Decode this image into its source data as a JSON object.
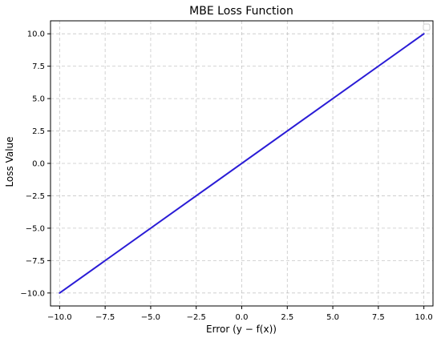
{
  "chart_data": {
    "type": "line",
    "title": "MBE Loss Function",
    "xlabel": "Error (y − f(x))",
    "ylabel": "Loss Value",
    "xlim": [
      -10.5,
      10.5
    ],
    "ylim": [
      -11.0,
      11.0
    ],
    "xticks": [
      -10.0,
      -7.5,
      -5.0,
      -2.5,
      0.0,
      2.5,
      5.0,
      7.5,
      10.0
    ],
    "yticks": [
      -10.0,
      -7.5,
      -5.0,
      -2.5,
      0.0,
      2.5,
      5.0,
      7.5,
      10.0
    ],
    "xtick_labels": [
      "−10.0",
      "−7.5",
      "−5.0",
      "−2.5",
      "0.0",
      "2.5",
      "5.0",
      "7.5",
      "10.0"
    ],
    "ytick_labels": [
      "−10.0",
      "−7.5",
      "−5.0",
      "−2.5",
      "0.0",
      "2.5",
      "5.0",
      "7.5",
      "10.0"
    ],
    "grid": true,
    "grid_style": "dashed",
    "legend": "top-right (empty)",
    "series": [
      {
        "color": "#2a1cd6",
        "x": [
          -10.0,
          10.0
        ],
        "y": [
          -10.0,
          10.0
        ]
      }
    ]
  }
}
